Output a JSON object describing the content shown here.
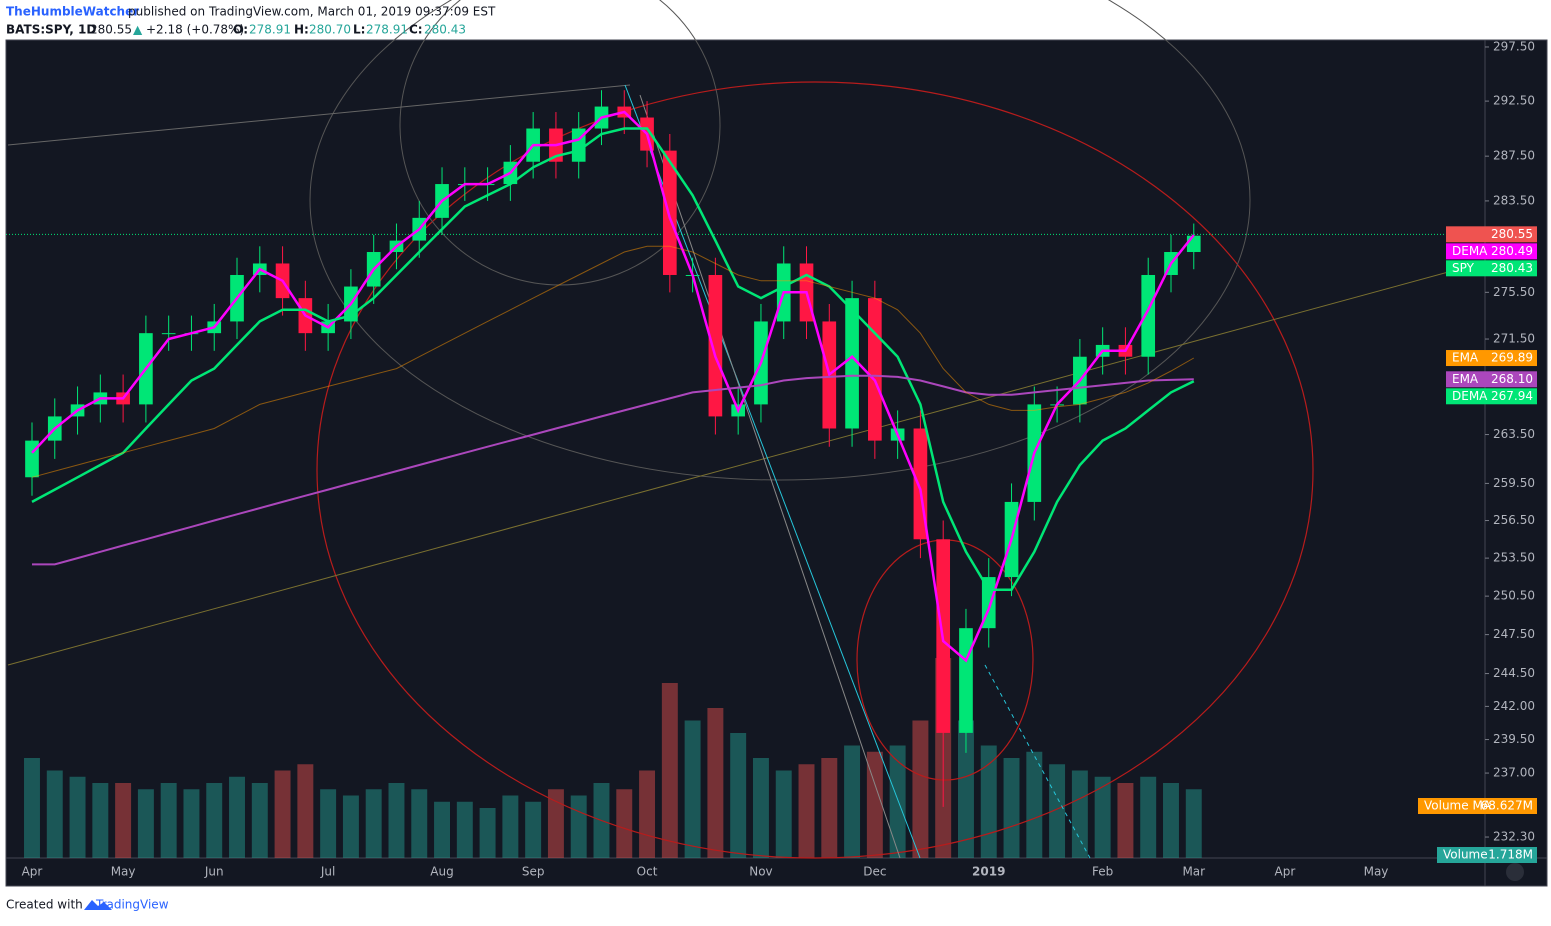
{
  "header": {
    "publisher": "TheHumbleWatcher",
    "published": "published on TradingView.com, March 01, 2019 09:37:09 EST",
    "symbol": "BATS:SPY, 1D",
    "last": "280.55",
    "arrow": "▲",
    "change": "+2.18 (+0.78%)",
    "o_label": "O:",
    "o": "278.91",
    "h_label": "H:",
    "h": "280.70",
    "l_label": "L:",
    "l": "278.91",
    "c_label": "C:",
    "c": "280.43"
  },
  "footer": {
    "created": "Created with",
    "brand": "TradingView"
  },
  "chart_data": {
    "type": "candlestick",
    "log": true,
    "symbol_label": "SPY",
    "price_line": 280.55,
    "up_color": "#00e676",
    "down_color": "#ff1744",
    "ylim": [
      230.78,
      298.15
    ],
    "yticks": [
      {
        "value": 297.5,
        "label": "297.50"
      },
      {
        "value": 292.5,
        "label": "292.50"
      },
      {
        "value": 287.5,
        "label": "287.50"
      },
      {
        "value": 283.5,
        "label": "283.50"
      },
      {
        "value": 275.5,
        "label": "275.50"
      },
      {
        "value": 271.5,
        "label": "271.50"
      },
      {
        "value": 263.5,
        "label": "263.50"
      },
      {
        "value": 259.5,
        "label": "259.50"
      },
      {
        "value": 256.5,
        "label": "256.50"
      },
      {
        "value": 253.5,
        "label": "253.50"
      },
      {
        "value": 250.5,
        "label": "250.50"
      },
      {
        "value": 247.5,
        "label": "247.50"
      },
      {
        "value": 244.5,
        "label": "244.50"
      },
      {
        "value": 242,
        "label": "242.00"
      },
      {
        "value": 239.5,
        "label": "239.50"
      },
      {
        "value": 237,
        "label": "237.00"
      },
      {
        "value": 232.3,
        "label": "232.30"
      }
    ],
    "categories": [
      "Apr",
      null,
      null,
      null,
      "May",
      null,
      null,
      null,
      "Jun",
      null,
      null,
      null,
      null,
      "Jul",
      null,
      null,
      null,
      null,
      "Aug",
      null,
      null,
      null,
      "Sep",
      null,
      null,
      null,
      null,
      "Oct",
      null,
      null,
      null,
      null,
      "Nov",
      null,
      null,
      null,
      null,
      "Dec",
      null,
      null,
      null,
      null,
      "2019",
      null,
      null,
      null,
      null,
      "Feb",
      null,
      null,
      null,
      "Mar",
      null,
      null,
      null,
      "Apr",
      null,
      null,
      null,
      "May"
    ],
    "open": [
      260,
      263,
      265,
      266,
      267,
      266,
      272,
      272,
      272,
      273,
      277,
      278,
      275,
      272,
      273,
      276,
      279,
      280,
      282,
      285,
      285,
      285,
      287,
      290,
      287,
      290,
      292,
      291,
      288,
      277,
      277,
      265,
      266,
      273,
      278,
      273,
      264,
      275,
      263,
      264,
      255,
      240,
      248,
      252,
      258,
      266,
      266,
      270,
      271,
      270,
      277,
      279,
      null,
      null,
      null,
      null,
      null,
      null,
      null,
      null
    ],
    "high": [
      264.5,
      266.5,
      267.5,
      268.5,
      268.5,
      273.5,
      273.5,
      273.5,
      274.5,
      278.5,
      279.5,
      279.5,
      276.5,
      274.5,
      277.5,
      280.5,
      281.5,
      283.5,
      286.5,
      286.5,
      286.5,
      288.5,
      291.5,
      291.5,
      291.5,
      293.5,
      293.5,
      292.5,
      289.5,
      278.5,
      278.5,
      267.5,
      274.5,
      279.5,
      279.5,
      274.5,
      276.5,
      276.5,
      265.5,
      265.5,
      256.5,
      249.5,
      253.5,
      259.5,
      267.5,
      267.5,
      271.5,
      272.5,
      272.5,
      278.5,
      280.5,
      281.5,
      null,
      null,
      null,
      null,
      null,
      null,
      null,
      null
    ],
    "low": [
      258.5,
      261.5,
      263.5,
      264.5,
      264.5,
      264.5,
      270.5,
      270.5,
      270.5,
      271.5,
      275.5,
      273.5,
      270.5,
      270.5,
      271.5,
      274.5,
      277.5,
      278.5,
      280.5,
      283.5,
      283.5,
      283.5,
      285.5,
      285.5,
      285.5,
      288.5,
      289.5,
      286.5,
      275.5,
      275.5,
      263.5,
      263.5,
      264.5,
      271.5,
      271.5,
      262.5,
      262.5,
      261.5,
      261.5,
      253.5,
      234.5,
      238.5,
      246.5,
      250.5,
      256.5,
      264.5,
      264.5,
      268.5,
      268.5,
      268.5,
      275.5,
      277.5,
      null,
      null,
      null,
      null,
      null,
      null,
      null,
      null
    ],
    "close": [
      263,
      265,
      266,
      267,
      266,
      272,
      272,
      272,
      273,
      277,
      278,
      275,
      272,
      273,
      276,
      279,
      280,
      282,
      285,
      285,
      285,
      287,
      290,
      287,
      290,
      292,
      291,
      288,
      277,
      277,
      265,
      266,
      273,
      278,
      273,
      264,
      275,
      263,
      264,
      255,
      240,
      248,
      252,
      258,
      266,
      266,
      270,
      271,
      270,
      277,
      279,
      280.43,
      null,
      null,
      null,
      null,
      null,
      null,
      null,
      null
    ],
    "volume": [
      80,
      70,
      65,
      60,
      60,
      55,
      60,
      55,
      60,
      65,
      60,
      70,
      75,
      55,
      50,
      55,
      60,
      55,
      45,
      45,
      40,
      50,
      45,
      55,
      50,
      60,
      55,
      70,
      140,
      110,
      120,
      100,
      80,
      70,
      75,
      80,
      90,
      85,
      90,
      110,
      160,
      110,
      90,
      80,
      85,
      75,
      70,
      65,
      60,
      65,
      60,
      55,
      null,
      null,
      null,
      null,
      null,
      null,
      null,
      null
    ],
    "volume_ma_name": "Volume MA",
    "volume_ma_text": "68.627M",
    "volume_name": "Volume",
    "volume_text": "1.718M",
    "series": [
      {
        "name": "DEMA",
        "color": "#ff00ff",
        "last_label": "280.49",
        "values": [
          262,
          264,
          265.5,
          266.5,
          266.5,
          269,
          271.5,
          272,
          272.5,
          275,
          277.5,
          276.5,
          273.5,
          272.5,
          274.5,
          277.5,
          279.5,
          281,
          283.5,
          285,
          285,
          286,
          288.5,
          288.5,
          289,
          291,
          291.5,
          289.5,
          282,
          277,
          270,
          265.5,
          269.5,
          275.5,
          275.5,
          268.5,
          270,
          268,
          263.5,
          259,
          247,
          245.5,
          249.5,
          255,
          262,
          266,
          268,
          270.5,
          270.5,
          274,
          278,
          280.49,
          null,
          null,
          null,
          null,
          null,
          null,
          null,
          null
        ]
      },
      {
        "name": "DEMA",
        "color": "#00e676",
        "last_label": "267.94",
        "values": [
          258,
          259,
          260,
          261,
          262,
          264,
          266,
          268,
          269,
          271,
          273,
          274,
          274,
          273,
          273.5,
          275,
          277,
          279,
          281,
          283,
          284,
          285,
          286.5,
          287.5,
          288,
          289.5,
          290,
          290,
          287,
          284,
          280,
          276,
          275,
          276,
          277,
          276,
          274,
          272,
          270,
          266,
          258,
          254,
          251,
          251,
          254,
          258,
          261,
          263,
          264,
          265.5,
          267,
          267.94,
          null,
          null,
          null,
          null,
          null,
          null,
          null,
          null
        ]
      },
      {
        "name": "EMA",
        "color": "#ab47bc",
        "last_label": "268.10",
        "values": [
          253,
          253,
          253.5,
          254,
          254.5,
          255,
          255.5,
          256,
          256.5,
          257,
          257.5,
          258,
          258.5,
          259,
          259.5,
          260,
          260.5,
          261,
          261.5,
          262,
          262.5,
          263,
          263.5,
          264,
          264.5,
          265,
          265.5,
          266,
          266.5,
          267,
          267.2,
          267.4,
          267.6,
          268,
          268.2,
          268.3,
          268.4,
          268.4,
          268.3,
          268,
          267.5,
          267,
          266.8,
          266.8,
          267,
          267.2,
          267.4,
          267.6,
          267.8,
          268,
          268.05,
          268.1,
          null,
          null,
          null,
          null,
          null,
          null,
          null,
          null
        ]
      },
      {
        "name": "EMA",
        "color": "#ff9800",
        "last_label": "269.89",
        "values": [
          260,
          260.5,
          261,
          261.5,
          262,
          262.5,
          263,
          263.5,
          264,
          265,
          266,
          266.5,
          267,
          267.5,
          268,
          268.5,
          269,
          270,
          271,
          272,
          273,
          274,
          275,
          276,
          277,
          278,
          279,
          279.5,
          279.5,
          279,
          278,
          277,
          276.5,
          276.5,
          276.5,
          276,
          275.5,
          275,
          274,
          272,
          269,
          267,
          266,
          265.5,
          265.5,
          265.8,
          266,
          266.5,
          267,
          267.8,
          268.8,
          269.89,
          null,
          null,
          null,
          null,
          null,
          null,
          null,
          null
        ]
      }
    ]
  }
}
